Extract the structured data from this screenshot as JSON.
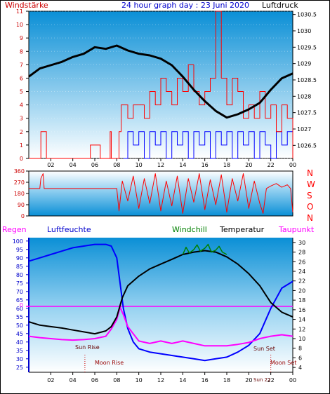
{
  "header": {
    "left_label": "Windstärke",
    "title": "24 hour graph day : 23 Juni 2020",
    "right_label": "Luftdruck"
  },
  "direction_labels": [
    "N",
    "W",
    "S",
    "O",
    "N"
  ],
  "legend": {
    "regen": "Regen",
    "luftfeuchte": "Luftfeuchte",
    "windchill": "Windchill",
    "temperatur": "Temperatur",
    "taupunkt": "Taupunkt"
  },
  "annotations": {
    "sun_rise": "Sun Rise",
    "sun_set": "Sun Set",
    "moon_rise": "Moon Rise",
    "moon_set": "Moon Set",
    "sun_22": "Sun 22",
    "zero": "0"
  },
  "colors": {
    "wind": "#ff0000",
    "gust": "#0000ff",
    "pressure": "#000000",
    "humidity": "#0000ff",
    "temperature": "#000000",
    "dewpoint": "#ff00ff",
    "windchill": "#008000",
    "header_left": "#cc0000",
    "header_title": "#0000cc",
    "zero_line": "#ff00ff"
  },
  "chart_data": [
    {
      "type": "line",
      "title": "24 hour graph day : 23 Juni 2020",
      "xlabel": "",
      "ylabel_left": "Windstärke",
      "ylabel_right": "Luftdruck",
      "x_ticks": [
        "02",
        "04",
        "06",
        "08",
        "10",
        "12",
        "14",
        "16",
        "18",
        "20",
        "22",
        "00"
      ],
      "ylim_left": [
        0,
        11
      ],
      "ylim_right": [
        1026.1,
        1030.6
      ],
      "y_ticks_left": [
        0,
        1,
        2,
        3,
        4,
        5,
        6,
        7,
        8,
        9,
        10,
        11
      ],
      "y_ticks_right": [
        1026.5,
        1027,
        1027.5,
        1028,
        1028.5,
        1029,
        1029.5,
        1030,
        1030.5
      ],
      "series": [
        {
          "name": "Windstärke",
          "axis": "left",
          "x": [
            0,
            1.0,
            1.1,
            1.5,
            1.6,
            5.5,
            5.6,
            6.5,
            6.6,
            7.4,
            7.5,
            8.2,
            8.4,
            9.0,
            9.5,
            10.0,
            10.5,
            11.0,
            11.5,
            12.0,
            12.5,
            13.0,
            13.5,
            14.0,
            14.5,
            15.0,
            15.5,
            16.0,
            16.5,
            17.0,
            17.5,
            18.0,
            18.5,
            19.0,
            19.5,
            20.0,
            20.5,
            21.0,
            21.5,
            22.0,
            22.5,
            23.0,
            23.5,
            24.0
          ],
          "y": [
            0,
            0,
            2,
            2,
            0,
            0,
            1,
            0,
            0,
            2,
            0,
            2,
            4,
            3,
            4,
            4,
            3,
            5,
            4,
            6,
            5,
            4,
            6,
            5,
            7,
            5,
            4,
            5,
            6,
            11,
            6,
            4,
            6,
            5,
            3,
            4,
            3,
            5,
            3,
            4,
            2,
            4,
            3,
            0
          ]
        },
        {
          "name": "Böen",
          "axis": "left",
          "x": [
            8.6,
            9.0,
            9.5,
            10.0,
            10.5,
            11.0,
            11.5,
            12.0,
            12.5,
            13.0,
            13.5,
            14.0,
            14.5,
            15.0,
            15.5,
            16.0,
            16.5,
            17.0,
            17.5,
            18.0,
            18.5,
            19.0,
            19.5,
            20.0,
            20.5,
            21.0,
            21.5,
            22.0,
            22.5,
            23.0,
            23.5,
            24.0
          ],
          "y": [
            0,
            2,
            1,
            2,
            0,
            2,
            1,
            2,
            0,
            2,
            1,
            2,
            0,
            2,
            1,
            2,
            0,
            2,
            1,
            2,
            0,
            2,
            1,
            2,
            0,
            2,
            1,
            0,
            2,
            1,
            2,
            0
          ]
        },
        {
          "name": "Luftdruck",
          "axis": "right",
          "x": [
            0,
            1,
            2,
            3,
            4,
            5,
            6,
            7,
            8,
            9,
            10,
            11,
            12,
            13,
            14,
            15,
            16,
            17,
            18,
            19,
            20,
            21,
            22,
            23,
            24
          ],
          "y": [
            1028.6,
            1028.85,
            1028.95,
            1029.05,
            1029.2,
            1029.3,
            1029.5,
            1029.45,
            1029.55,
            1029.4,
            1029.3,
            1029.25,
            1029.15,
            1028.95,
            1028.6,
            1028.2,
            1027.85,
            1027.55,
            1027.35,
            1027.45,
            1027.6,
            1027.8,
            1028.2,
            1028.55,
            1028.7
          ]
        }
      ]
    },
    {
      "type": "line",
      "title": "",
      "ylabel_right": "N W S O N",
      "x_ticks": [],
      "ylim": [
        0,
        360
      ],
      "y_ticks": [
        0,
        90,
        180,
        270,
        360
      ],
      "series": [
        {
          "name": "Windrichtung",
          "x": [
            0,
            1.0,
            1.1,
            1.3,
            1.4,
            5.0,
            6.0,
            7.0,
            8.0,
            8.2,
            8.5,
            9.0,
            9.5,
            10.0,
            10.5,
            11.0,
            11.5,
            12.0,
            12.5,
            13.0,
            13.5,
            14.0,
            14.5,
            15.0,
            15.5,
            16.0,
            16.5,
            17.0,
            17.5,
            18.0,
            18.5,
            19.0,
            19.5,
            20.0,
            20.5,
            21.0,
            21.3,
            21.6,
            22.0,
            22.5,
            23.0,
            23.5,
            23.8,
            24.0
          ],
          "y": [
            220,
            220,
            300,
            340,
            220,
            220,
            220,
            220,
            220,
            40,
            280,
            120,
            320,
            60,
            300,
            100,
            340,
            40,
            280,
            80,
            320,
            20,
            300,
            110,
            340,
            50,
            290,
            90,
            330,
            30,
            300,
            120,
            340,
            60,
            280,
            100,
            20,
            220,
            240,
            260,
            230,
            250,
            220,
            30
          ]
        }
      ]
    },
    {
      "type": "line",
      "title": "",
      "x_ticks": [
        "02",
        "04",
        "06",
        "08",
        "10",
        "12",
        "14",
        "16",
        "18",
        "20",
        "22",
        "00"
      ],
      "ylim_left": [
        22,
        102
      ],
      "ylim_right": [
        3,
        31
      ],
      "y_ticks_left": [
        25,
        30,
        35,
        40,
        45,
        50,
        55,
        60,
        65,
        70,
        75,
        80,
        85,
        90,
        95,
        100
      ],
      "y_ticks_right": [
        4,
        6,
        8,
        10,
        12,
        14,
        16,
        18,
        20,
        22,
        24,
        26,
        28,
        30
      ],
      "series": [
        {
          "name": "Luftfeuchte",
          "axis": "left",
          "x": [
            0,
            1,
            2,
            3,
            4,
            5,
            6,
            7,
            7.5,
            8,
            8.3,
            8.6,
            9,
            9.5,
            10,
            11,
            12,
            13,
            14,
            15,
            16,
            17,
            18,
            19,
            20,
            21,
            22,
            23,
            24
          ],
          "y": [
            88,
            90,
            92,
            94,
            96,
            97,
            98,
            98,
            97,
            90,
            75,
            60,
            48,
            40,
            36,
            34,
            33,
            32,
            31,
            30,
            29,
            30,
            31,
            34,
            38,
            45,
            60,
            72,
            76
          ]
        },
        {
          "name": "Temperatur",
          "axis": "right",
          "x": [
            0,
            1,
            2,
            3,
            4,
            5,
            6,
            7,
            7.5,
            8,
            8.5,
            9,
            10,
            11,
            12,
            13,
            14,
            15,
            16,
            17,
            18,
            19,
            20,
            21,
            22,
            23,
            24
          ],
          "y": [
            13.5,
            12.8,
            12.5,
            12.2,
            11.8,
            11.4,
            11.0,
            11.6,
            12.5,
            14.5,
            18.5,
            21.0,
            23.0,
            24.5,
            25.5,
            26.5,
            27.5,
            28.0,
            28.3,
            28.0,
            27.0,
            25.5,
            23.5,
            21.0,
            17.5,
            15.5,
            14.5
          ]
        },
        {
          "name": "Taupunkt",
          "axis": "right",
          "x": [
            0,
            1,
            2,
            3,
            4,
            5,
            6,
            7,
            7.5,
            8,
            8.3,
            8.6,
            9,
            9.5,
            10,
            11,
            12,
            13,
            14,
            15,
            16,
            17,
            18,
            19,
            20,
            21,
            22,
            23,
            24
          ],
          "y": [
            10.5,
            10.2,
            10.0,
            9.8,
            9.7,
            9.8,
            10.0,
            10.5,
            12,
            14,
            16.5,
            15,
            12.5,
            11,
            9.5,
            9.0,
            9.5,
            9.0,
            9.5,
            9.0,
            8.5,
            8.5,
            8.5,
            8.8,
            9.2,
            10.0,
            10.5,
            10.8,
            10.5
          ]
        },
        {
          "name": "Windchill",
          "axis": "right",
          "x": [
            14,
            14.3,
            14.6,
            15,
            15.3,
            15.6,
            16,
            16.3,
            16.6,
            17,
            17.3,
            17.6,
            18
          ],
          "y": [
            27.5,
            29,
            27.8,
            28.5,
            29.5,
            28.2,
            28.8,
            29.6,
            28.0,
            28.4,
            29.2,
            28.0,
            27.5
          ]
        }
      ]
    }
  ]
}
